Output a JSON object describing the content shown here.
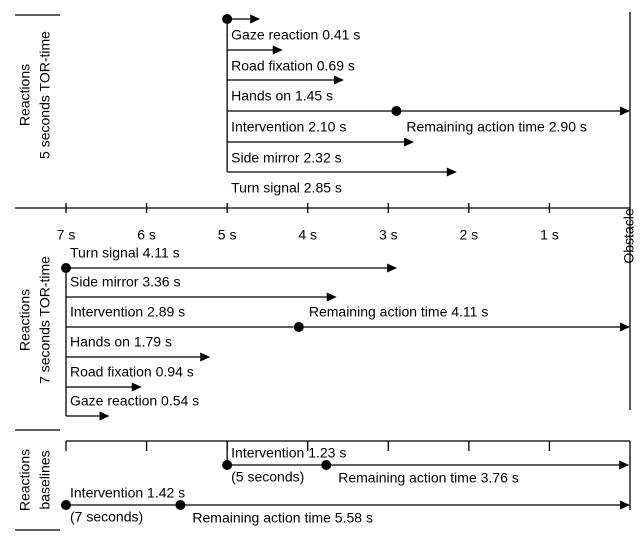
{
  "axis": {
    "xlim": [
      7,
      0
    ],
    "ticks": [
      {
        "value": 7,
        "label": "7 s"
      },
      {
        "value": 6,
        "label": "6 s"
      },
      {
        "value": 5,
        "label": "5 s"
      },
      {
        "value": 4,
        "label": "4 s"
      },
      {
        "value": 3,
        "label": "3 s"
      },
      {
        "value": 2,
        "label": "2 s"
      },
      {
        "value": 1,
        "label": "1 s"
      }
    ],
    "end_label": "Obstacle"
  },
  "groups": [
    {
      "title": [
        "Reactions",
        "5 seconds TOR-time"
      ],
      "tor_time": 5,
      "reactions": [
        {
          "label": "Gaze reaction 0.41 s",
          "value": 0.41
        },
        {
          "label": "Road fixation 0.69 s",
          "value": 0.69
        },
        {
          "label": "Hands on 1.45 s",
          "value": 1.45
        },
        {
          "label": "Intervention 2.10 s",
          "value": 2.1,
          "remaining": {
            "label": "Remaining action time 2.90 s",
            "value": 2.9
          }
        },
        {
          "label": "Side mirror 2.32 s",
          "value": 2.32
        },
        {
          "label": "Turn signal 2.85 s",
          "value": 2.85
        }
      ]
    },
    {
      "title": [
        "Reactions",
        "7 seconds TOR-time"
      ],
      "tor_time": 7,
      "reactions": [
        {
          "label": "Turn signal 4.11 s",
          "value": 4.11
        },
        {
          "label": "Side mirror 3.36 s",
          "value": 3.36
        },
        {
          "label": "Intervention 2.89 s",
          "value": 2.89,
          "remaining": {
            "label": "Remaining action time 4.11 s",
            "value": 4.11
          }
        },
        {
          "label": "Hands on 1.79 s",
          "value": 1.79
        },
        {
          "label": "Road fixation 0.94 s",
          "value": 0.94
        },
        {
          "label": "Gaze reaction 0.54 s",
          "value": 0.54
        }
      ]
    }
  ],
  "baselines": {
    "title": [
      "Reactions",
      "baselines"
    ],
    "items": [
      {
        "tor_time": 5,
        "label": "Intervention 1.23 s",
        "note": "(5 seconds)",
        "value": 1.23,
        "remaining": {
          "label": "Remaining action time 3.76 s",
          "value": 3.76
        }
      },
      {
        "tor_time": 7,
        "label": "Intervention 1.42 s",
        "note": "(7 seconds)",
        "value": 1.42,
        "remaining": {
          "label": "Remaining action time 5.58 s",
          "value": 5.58
        }
      }
    ]
  }
}
